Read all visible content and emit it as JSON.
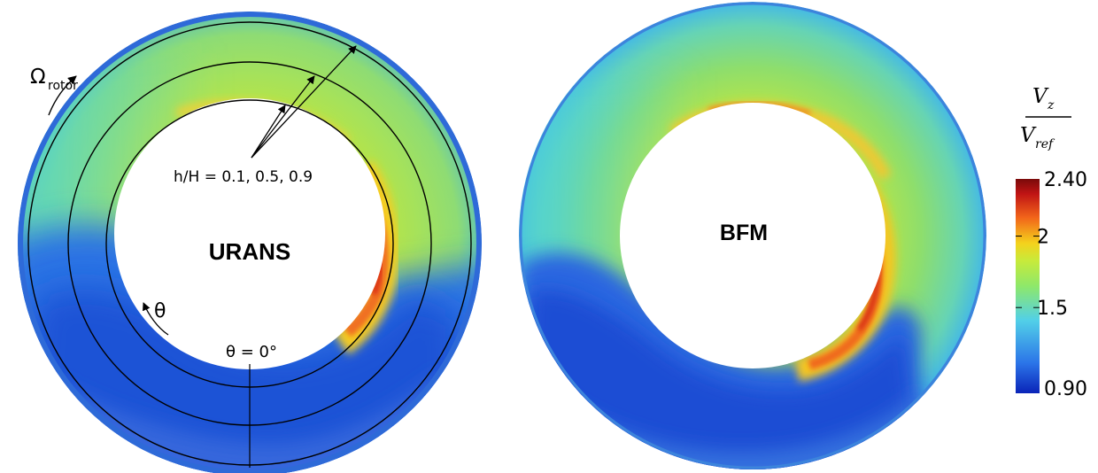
{
  "panels": [
    {
      "label": "URANS"
    },
    {
      "label": "BFM"
    }
  ],
  "annotations": {
    "omega_symbol": "Ω",
    "omega_subscript": "rotor",
    "span_label": "h/H = 0.1, 0.5, 0.9",
    "theta_label": "θ",
    "theta_zero_label": "θ = 0°"
  },
  "colorbar": {
    "numerator_main": "V",
    "numerator_sub": "z",
    "denominator_main": "V",
    "denominator_sub": "ref",
    "tick_labels": [
      "2.40",
      "2",
      "1.5",
      "0.90"
    ],
    "min_value": 0.9,
    "max_value": 2.4,
    "tick_values": [
      2.4,
      2.0,
      1.5,
      0.9
    ],
    "colors": [
      "#0a24b8",
      "#2b74e8",
      "#52d0e8",
      "#8ee86a",
      "#c8ea3a",
      "#f4d21c",
      "#f2641a",
      "#c01414",
      "#7a0a0a"
    ]
  }
}
